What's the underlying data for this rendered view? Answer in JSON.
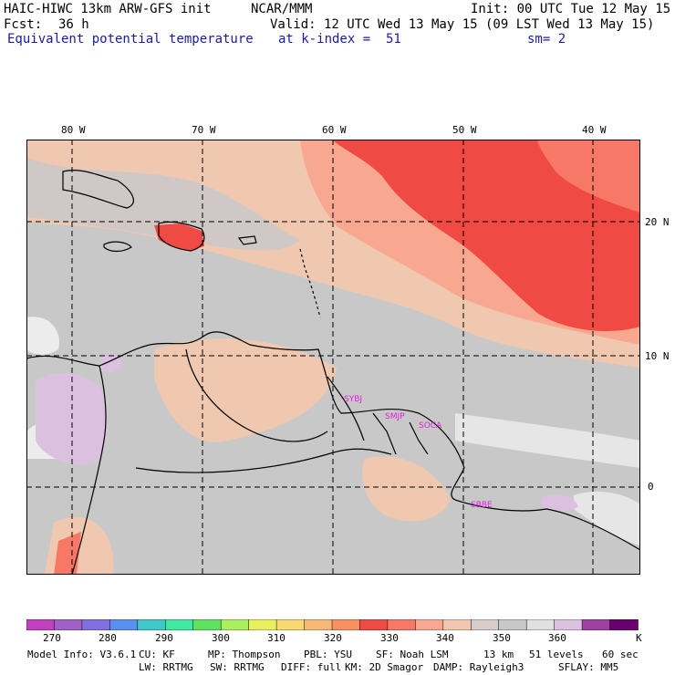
{
  "header": {
    "model": "HAIC-HIWC 13km ARW-GFS init",
    "org": "NCAR/MMM",
    "init": "Init: 00 UTC Tue 12 May 15",
    "fcst_label": "Fcst:",
    "fcst_value": "36 h",
    "valid": "Valid: 12 UTC Wed 13 May 15 (09 LST Wed 13 May 15)",
    "field": "Equivalent potential temperature",
    "level": "at k-index =  51",
    "smooth": "sm= 2"
  },
  "axes": {
    "lon_labels": [
      "80 W",
      "70 W",
      "60 W",
      "50 W",
      "40 W"
    ],
    "lat_labels": [
      "20 N",
      "10 N",
      "0"
    ]
  },
  "stations": [
    "SYBJ",
    "SMJP",
    "SOCA",
    "SBBE"
  ],
  "colorbar": {
    "ticks": [
      "270",
      "280",
      "290",
      "300",
      "310",
      "320",
      "330",
      "340",
      "350",
      "360"
    ],
    "unit": "K",
    "colors": [
      "#c040c0",
      "#a060c8",
      "#8070e0",
      "#5a8ef0",
      "#40c8c8",
      "#40e8a0",
      "#60e060",
      "#a8f060",
      "#e8f060",
      "#f8d870",
      "#f8b878",
      "#f89060",
      "#f04a44",
      "#f87868",
      "#f8a890",
      "#f0c8b0",
      "#d8ccc8",
      "#c8c8c8",
      "#e0e0e0",
      "#dcc0e0",
      "#a040a0",
      "#6a0070"
    ]
  },
  "footer": {
    "line1": [
      "Model Info: V3.6.1",
      "CU: KF",
      "MP: Thompson",
      "PBL: YSU",
      "SF: Noah LSM",
      "13 km",
      "51 levels",
      "60 sec"
    ],
    "line2": [
      "LW: RRTMG",
      "SW: RRTMG",
      "DIFF: full",
      "KM: 2D Smagor",
      "DAMP: Rayleigh3",
      "SFLAY: MM5"
    ]
  }
}
